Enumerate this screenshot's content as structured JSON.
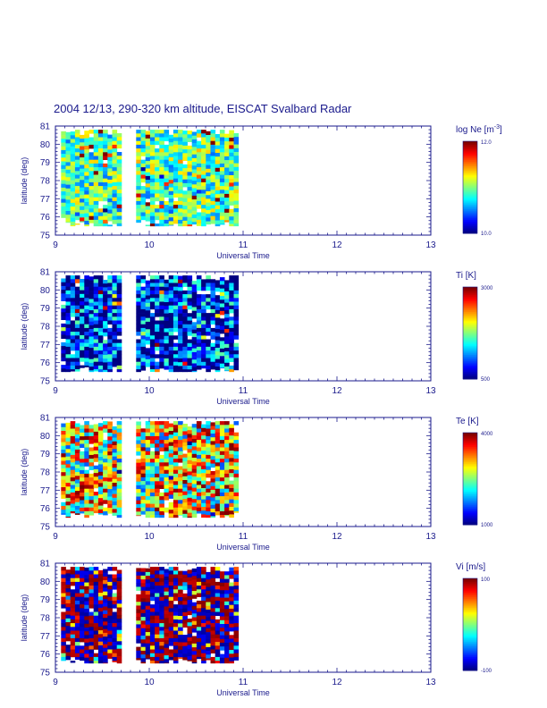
{
  "title": "2004 12/13, 290-320 km altitude, EISCAT Svalbard Radar",
  "chart_data": [
    {
      "type": "heatmap",
      "xlabel": "Universal Time",
      "ylabel": "latitude (deg)",
      "xlim": [
        9,
        13
      ],
      "ylim": [
        75,
        81
      ],
      "xticks": [
        "9",
        "10",
        "11",
        "12",
        "13"
      ],
      "yticks": [
        "75",
        "76",
        "77",
        "78",
        "79",
        "80",
        "81"
      ],
      "colorbar": {
        "title_main": "log Ne [m",
        "title_sup": "-3",
        "title_end": "]",
        "min_label": "10.0",
        "max_label": "12.0",
        "vmin": 10.0,
        "vmax": 12.0
      },
      "data_coverage": [
        {
          "x": [
            9.06,
            9.72
          ],
          "y": [
            75.5,
            80.8
          ]
        },
        {
          "x": [
            9.86,
            10.97
          ],
          "y": [
            75.5,
            80.8
          ]
        }
      ],
      "value_bias": 0.45,
      "value_spread": 0.22
    },
    {
      "type": "heatmap",
      "xlabel": "Universal Time",
      "ylabel": "latitude (deg)",
      "xlim": [
        9,
        13
      ],
      "ylim": [
        75,
        81
      ],
      "xticks": [
        "9",
        "10",
        "11",
        "12",
        "13"
      ],
      "yticks": [
        "75",
        "76",
        "77",
        "78",
        "79",
        "80",
        "81"
      ],
      "colorbar": {
        "title_main": "Ti [K]",
        "title_sup": "",
        "title_end": "",
        "min_label": "500",
        "max_label": "3000",
        "vmin": 500,
        "vmax": 3000
      },
      "data_coverage": [
        {
          "x": [
            9.06,
            9.72
          ],
          "y": [
            75.5,
            80.8
          ]
        },
        {
          "x": [
            9.86,
            10.97
          ],
          "y": [
            75.5,
            80.8
          ]
        }
      ],
      "value_bias": 0.12,
      "value_spread": 0.35
    },
    {
      "type": "heatmap",
      "xlabel": "Universal Time",
      "ylabel": "latitude (deg)",
      "xlim": [
        9,
        13
      ],
      "ylim": [
        75,
        81
      ],
      "xticks": [
        "9",
        "10",
        "11",
        "12",
        "13"
      ],
      "yticks": [
        "75",
        "76",
        "77",
        "78",
        "79",
        "80",
        "81"
      ],
      "colorbar": {
        "title_main": "Te [K]",
        "title_sup": "",
        "title_end": "",
        "min_label": "1000",
        "max_label": "4000",
        "vmin": 1000,
        "vmax": 4000
      },
      "data_coverage": [
        {
          "x": [
            9.06,
            9.72
          ],
          "y": [
            75.5,
            80.8
          ]
        },
        {
          "x": [
            9.86,
            10.97
          ],
          "y": [
            75.5,
            80.8
          ]
        }
      ],
      "value_bias": 0.6,
      "value_spread": 0.4
    },
    {
      "type": "heatmap",
      "xlabel": "Universal Time",
      "ylabel": "latitude (deg)",
      "xlim": [
        9,
        13
      ],
      "ylim": [
        75,
        81
      ],
      "xticks": [
        "9",
        "10",
        "11",
        "12",
        "13"
      ],
      "yticks": [
        "75",
        "76",
        "77",
        "78",
        "79",
        "80",
        "81"
      ],
      "colorbar": {
        "title_main": "Vi [m/s]",
        "title_sup": "",
        "title_end": "",
        "min_label": "-100",
        "max_label": "100",
        "vmin": -100,
        "vmax": 100
      },
      "data_coverage": [
        {
          "x": [
            9.06,
            9.72
          ],
          "y": [
            75.5,
            80.8
          ]
        },
        {
          "x": [
            9.86,
            10.97
          ],
          "y": [
            75.5,
            80.8
          ]
        }
      ],
      "value_bias": 0.5,
      "value_spread": 0.5
    }
  ]
}
